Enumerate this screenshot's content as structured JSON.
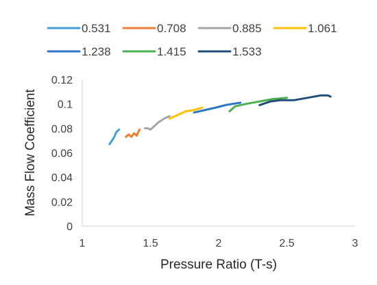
{
  "chart_data": {
    "type": "line",
    "xlabel": "Pressure Ratio (T-s)",
    "ylabel": "Mass Flow Coefficient",
    "xlim": [
      1,
      3
    ],
    "ylim": [
      0,
      0.12
    ],
    "x_ticks": [
      "1",
      "1.5",
      "2",
      "2.5",
      "3"
    ],
    "y_ticks": [
      "0",
      "0.02",
      "0.04",
      "0.06",
      "0.08",
      "0.1",
      "0.12"
    ],
    "grid": false,
    "legend_position": "top",
    "series": [
      {
        "name": "0.531",
        "color": "#41A0DC",
        "x": [
          1.2,
          1.23,
          1.25,
          1.27
        ],
        "y": [
          0.067,
          0.072,
          0.077,
          0.079
        ]
      },
      {
        "name": "0.708",
        "color": "#ED7D31",
        "x": [
          1.32,
          1.34,
          1.36,
          1.38,
          1.4,
          1.41,
          1.42
        ],
        "y": [
          0.073,
          0.075,
          0.073,
          0.076,
          0.074,
          0.077,
          0.079
        ]
      },
      {
        "name": "0.885",
        "color": "#A5A5A5",
        "x": [
          1.46,
          1.48,
          1.5,
          1.53,
          1.56,
          1.6,
          1.64
        ],
        "y": [
          0.08,
          0.08,
          0.079,
          0.082,
          0.085,
          0.088,
          0.09
        ]
      },
      {
        "name": "1.061",
        "color": "#FFC000",
        "x": [
          1.64,
          1.7,
          1.76,
          1.82,
          1.88
        ],
        "y": [
          0.088,
          0.091,
          0.094,
          0.095,
          0.097
        ]
      },
      {
        "name": "1.238",
        "color": "#2E75C8",
        "x": [
          1.82,
          1.9,
          1.98,
          2.05,
          2.1,
          2.16
        ],
        "y": [
          0.093,
          0.095,
          0.097,
          0.099,
          0.1,
          0.101
        ]
      },
      {
        "name": "1.415",
        "color": "#4CAF50",
        "x": [
          2.08,
          2.12,
          2.2,
          2.3,
          2.4,
          2.5
        ],
        "y": [
          0.094,
          0.098,
          0.1,
          0.102,
          0.104,
          0.105
        ]
      },
      {
        "name": "1.533",
        "color": "#1F4E79",
        "x": [
          2.3,
          2.38,
          2.45,
          2.55,
          2.65,
          2.75,
          2.8,
          2.82
        ],
        "y": [
          0.099,
          0.102,
          0.103,
          0.103,
          0.105,
          0.107,
          0.107,
          0.106
        ]
      }
    ]
  }
}
